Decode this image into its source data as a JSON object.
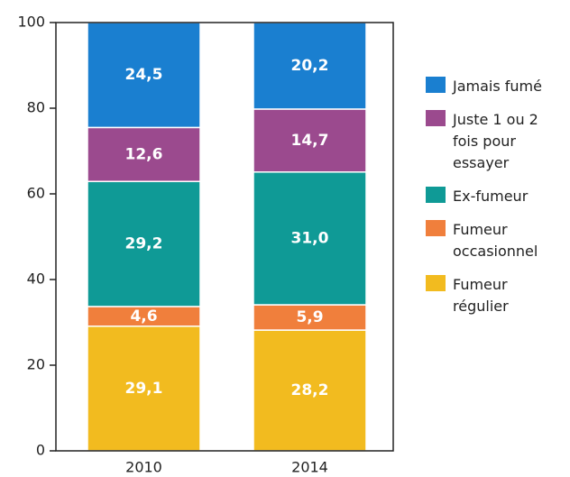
{
  "chart_data": {
    "type": "stacked_bar",
    "categories": [
      "2010",
      "2014"
    ],
    "series": [
      {
        "name": "Fumeur régulier",
        "color": "#f2bb1f",
        "values": [
          29.1,
          28.2
        ],
        "value_labels": [
          "29,1",
          "28,2"
        ]
      },
      {
        "name": "Fumeur occasionnel",
        "color": "#f07f3c",
        "values": [
          4.6,
          5.9
        ],
        "value_labels": [
          "4,6",
          "5,9"
        ]
      },
      {
        "name": "Ex-fumeur",
        "color": "#0f9a96",
        "values": [
          29.2,
          31.0
        ],
        "value_labels": [
          "29,2",
          "31,0"
        ]
      },
      {
        "name": "Juste 1 ou 2 fois pour essayer",
        "color": "#9b4a8e",
        "values": [
          12.6,
          14.7
        ],
        "value_labels": [
          "12,6",
          "14,7"
        ]
      },
      {
        "name": "Jamais fumé",
        "color": "#1a7fd0",
        "values": [
          24.5,
          20.2
        ],
        "value_labels": [
          "24,5",
          "20,2"
        ]
      }
    ],
    "ylim": [
      0,
      100
    ],
    "yticks": [
      0,
      20,
      40,
      60,
      80,
      100
    ]
  }
}
